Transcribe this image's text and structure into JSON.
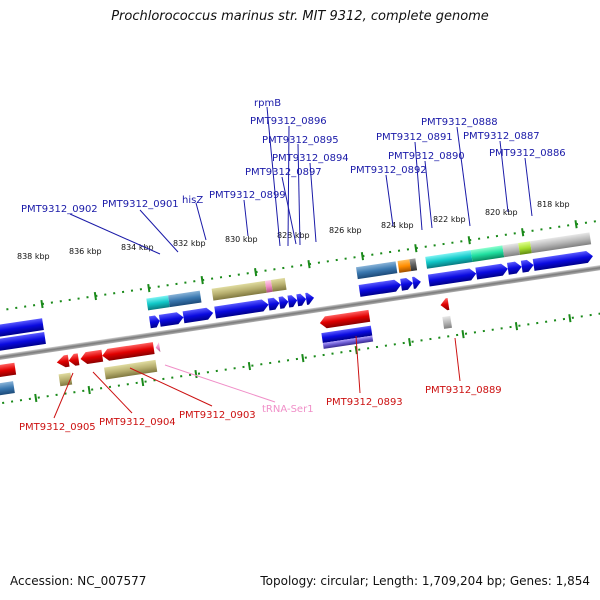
{
  "title": "Prochlorococcus marinus str. MIT 9312, complete genome",
  "accession_label": "Accession: NC_007577",
  "topology_label": "Topology: circular; Length: 1,709,204 bp; Genes: 1,854",
  "colors": {
    "forward_strand": "#1010e0",
    "reverse_strand": "#e00000",
    "trna": "#f08fc8",
    "top_label": "#1a1aa8",
    "bottom_label": "#cc1111",
    "tick": "#1a8a1a",
    "backbone": "#8a8a8a"
  },
  "kbp_ticks": [
    "838 kbp",
    "836 kbp",
    "834 kbp",
    "832 kbp",
    "830 kbp",
    "828 kbp",
    "826 kbp",
    "824 kbp",
    "822 kbp",
    "820 kbp",
    "818 kbp"
  ],
  "top_labels": [
    "rpmB",
    "PMT9312_0896",
    "PMT9312_0895",
    "PMT9312_0894",
    "PMT9312_0897",
    "PMT9312_0899",
    "hisZ",
    "PMT9312_0901",
    "PMT9312_0902",
    "PMT9312_0888",
    "PMT9312_0891",
    "PMT9312_0887",
    "PMT9312_0890",
    "PMT9312_0886",
    "PMT9312_0892"
  ],
  "bottom_labels": [
    "PMT9312_0905",
    "PMT9312_0904",
    "PMT9312_0903",
    "tRNA-Ser1",
    "PMT9312_0893",
    "PMT9312_0889"
  ]
}
